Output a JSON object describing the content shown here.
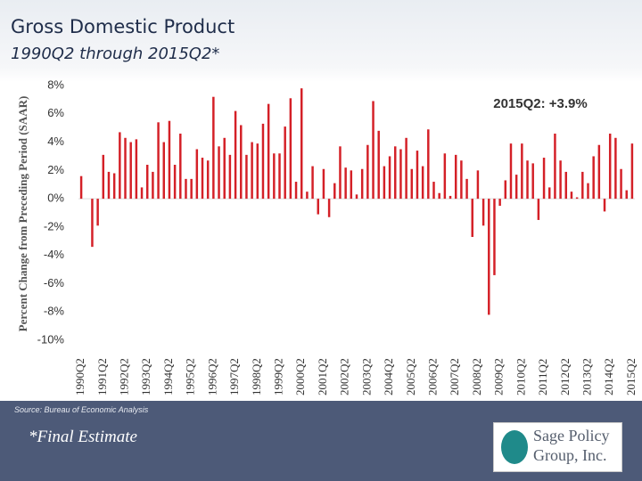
{
  "header": {
    "title": "Gross Domestic Product",
    "subtitle": "1990Q2 through 2015Q2*"
  },
  "chart_data": {
    "type": "bar",
    "y_label": "Percent Change from Preceding Period (SAAR)",
    "annotation": "2015Q2: +3.9%",
    "color": "#d42027",
    "categories": [
      "1990Q2",
      null,
      null,
      null,
      "1991Q2",
      null,
      null,
      null,
      "1992Q2",
      null,
      null,
      null,
      "1993Q2",
      null,
      null,
      null,
      "1994Q2",
      null,
      null,
      null,
      "1995Q2",
      null,
      null,
      null,
      "1996Q2",
      null,
      null,
      null,
      "1997Q2",
      null,
      null,
      null,
      "1998Q2",
      null,
      null,
      null,
      "1999Q2",
      null,
      null,
      null,
      "2000Q2",
      null,
      null,
      null,
      "2001Q2",
      null,
      null,
      null,
      "2002Q2",
      null,
      null,
      null,
      "2003Q2",
      null,
      null,
      null,
      "2004Q2",
      null,
      null,
      null,
      "2005Q2",
      null,
      null,
      null,
      "2006Q2",
      null,
      null,
      null,
      "2007Q2",
      null,
      null,
      null,
      "2008Q2",
      null,
      null,
      null,
      "2009Q2",
      null,
      null,
      null,
      "2010Q2",
      null,
      null,
      null,
      "2011Q2",
      null,
      null,
      null,
      "2012Q2",
      null,
      null,
      null,
      "2013Q2",
      null,
      null,
      null,
      "2014Q2",
      null,
      null,
      null,
      "2015Q2"
    ],
    "values": [
      1.6,
      0.0,
      -3.4,
      -1.9,
      3.1,
      1.9,
      1.8,
      4.7,
      4.3,
      4.0,
      4.2,
      0.8,
      2.4,
      1.9,
      5.4,
      4.0,
      5.5,
      2.4,
      4.6,
      1.4,
      1.4,
      3.5,
      2.9,
      2.7,
      7.2,
      3.7,
      4.3,
      3.1,
      6.2,
      5.2,
      3.1,
      4.0,
      3.9,
      5.3,
      6.7,
      3.2,
      3.2,
      5.1,
      7.1,
      1.2,
      7.8,
      0.5,
      2.3,
      -1.1,
      2.1,
      -1.3,
      1.1,
      3.7,
      2.2,
      2.0,
      0.3,
      2.1,
      3.8,
      6.9,
      4.8,
      2.3,
      3.0,
      3.7,
      3.5,
      4.3,
      2.1,
      3.4,
      2.3,
      4.9,
      1.2,
      0.4,
      3.2,
      0.2,
      3.1,
      2.7,
      1.4,
      -2.7,
      2.0,
      -1.9,
      -8.2,
      -5.4,
      -0.5,
      1.3,
      3.9,
      1.7,
      3.9,
      2.7,
      2.5,
      -1.5,
      2.9,
      0.8,
      4.6,
      2.7,
      1.9,
      0.5,
      0.1,
      1.9,
      1.1,
      3.0,
      3.8,
      -0.9,
      4.6,
      4.3,
      2.1,
      0.6,
      3.9
    ],
    "ylim": [
      -10,
      8
    ],
    "yticks": [
      {
        "value": -10,
        "label": "-10%"
      },
      {
        "value": -8,
        "label": "-8%"
      },
      {
        "value": -6,
        "label": "-6%"
      },
      {
        "value": -4,
        "label": "-4%"
      },
      {
        "value": -2,
        "label": "-2%"
      },
      {
        "value": 0,
        "label": "0%"
      },
      {
        "value": 2,
        "label": "2%"
      },
      {
        "value": 4,
        "label": "4%"
      },
      {
        "value": 6,
        "label": "6%"
      },
      {
        "value": 8,
        "label": "8%"
      }
    ],
    "grid": false
  },
  "footer": {
    "source": "Source: Bureau of Economic Analysis",
    "note": "*Final Estimate",
    "logo": [
      "Sage Policy",
      "Group, Inc."
    ]
  }
}
